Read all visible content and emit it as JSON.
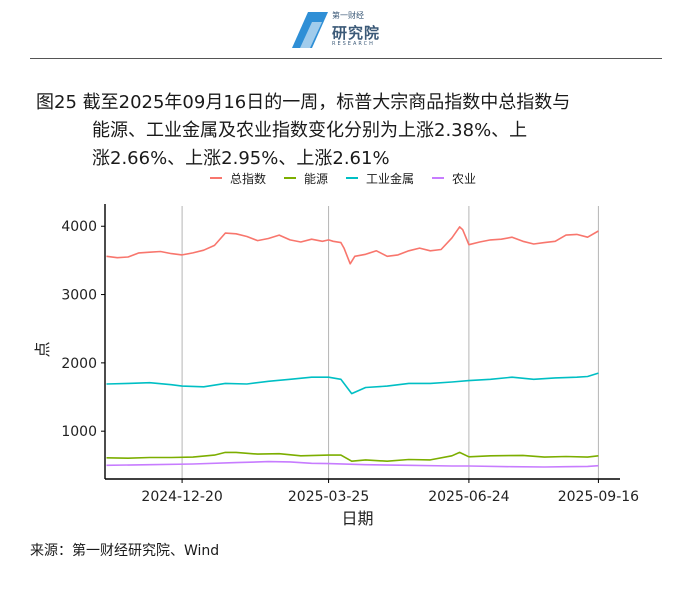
{
  "header": {
    "logo_cn": "第一财经",
    "logo_main": "研究院",
    "logo_en": "RESEARCH"
  },
  "title": {
    "lines": [
      "图25  截至2025年09月16日的一周，标普大宗商品指数中总指数与",
      "能源、工业金属及农业指数变化分别为上涨2.38%、上",
      "涨2.66%、上涨2.95%、上涨2.61%"
    ]
  },
  "source": "来源：第一财经研究院、Wind",
  "colors": {
    "total": "#F8766D",
    "energy": "#7CAE00",
    "metals": "#00BFC4",
    "agri": "#C77CFF"
  },
  "chart_data": {
    "type": "line",
    "xlabel": "日期",
    "ylabel": "点",
    "x_ticks": [
      "2024-12-20",
      "2025-03-25",
      "2025-06-24",
      "2025-09-16"
    ],
    "y_ticks": [
      1000,
      2000,
      3000,
      4000
    ],
    "ylim": [
      300,
      4150
    ],
    "xlim": [
      "2024-10-31",
      "2025-09-30"
    ],
    "grid": "vertical lines at x ticks",
    "legend_position": "top",
    "series": [
      {
        "name": "总指数",
        "color_key": "total",
        "points": [
          [
            "2024-11-01",
            3560
          ],
          [
            "2024-11-08",
            3540
          ],
          [
            "2024-11-15",
            3550
          ],
          [
            "2024-11-22",
            3610
          ],
          [
            "2024-11-29",
            3620
          ],
          [
            "2024-12-06",
            3630
          ],
          [
            "2024-12-13",
            3600
          ],
          [
            "2024-12-20",
            3580
          ],
          [
            "2024-12-27",
            3610
          ],
          [
            "2025-01-03",
            3650
          ],
          [
            "2025-01-10",
            3720
          ],
          [
            "2025-01-17",
            3900
          ],
          [
            "2025-01-24",
            3890
          ],
          [
            "2025-01-31",
            3850
          ],
          [
            "2025-02-07",
            3790
          ],
          [
            "2025-02-14",
            3820
          ],
          [
            "2025-02-21",
            3870
          ],
          [
            "2025-02-28",
            3800
          ],
          [
            "2025-03-07",
            3770
          ],
          [
            "2025-03-14",
            3810
          ],
          [
            "2025-03-21",
            3780
          ],
          [
            "2025-03-25",
            3800
          ],
          [
            "2025-03-28",
            3780
          ],
          [
            "2025-04-02",
            3760
          ],
          [
            "2025-04-04",
            3680
          ],
          [
            "2025-04-08",
            3450
          ],
          [
            "2025-04-11",
            3560
          ],
          [
            "2025-04-18",
            3590
          ],
          [
            "2025-04-25",
            3640
          ],
          [
            "2025-05-02",
            3560
          ],
          [
            "2025-05-09",
            3580
          ],
          [
            "2025-05-16",
            3640
          ],
          [
            "2025-05-23",
            3680
          ],
          [
            "2025-05-30",
            3640
          ],
          [
            "2025-06-06",
            3660
          ],
          [
            "2025-06-13",
            3830
          ],
          [
            "2025-06-18",
            3990
          ],
          [
            "2025-06-20",
            3950
          ],
          [
            "2025-06-24",
            3730
          ],
          [
            "2025-07-01",
            3770
          ],
          [
            "2025-07-08",
            3800
          ],
          [
            "2025-07-15",
            3810
          ],
          [
            "2025-07-22",
            3840
          ],
          [
            "2025-07-29",
            3780
          ],
          [
            "2025-08-05",
            3740
          ],
          [
            "2025-08-12",
            3760
          ],
          [
            "2025-08-19",
            3780
          ],
          [
            "2025-08-26",
            3870
          ],
          [
            "2025-09-02",
            3880
          ],
          [
            "2025-09-09",
            3840
          ],
          [
            "2025-09-16",
            3930
          ]
        ]
      },
      {
        "name": "能源",
        "color_key": "energy",
        "points": [
          [
            "2024-11-01",
            610
          ],
          [
            "2024-11-15",
            605
          ],
          [
            "2024-11-29",
            615
          ],
          [
            "2024-12-13",
            615
          ],
          [
            "2024-12-27",
            620
          ],
          [
            "2025-01-10",
            650
          ],
          [
            "2025-01-17",
            690
          ],
          [
            "2025-01-24",
            690
          ],
          [
            "2025-02-07",
            665
          ],
          [
            "2025-02-21",
            670
          ],
          [
            "2025-03-07",
            640
          ],
          [
            "2025-03-25",
            650
          ],
          [
            "2025-04-02",
            650
          ],
          [
            "2025-04-09",
            560
          ],
          [
            "2025-04-18",
            580
          ],
          [
            "2025-05-02",
            560
          ],
          [
            "2025-05-16",
            585
          ],
          [
            "2025-05-30",
            580
          ],
          [
            "2025-06-13",
            640
          ],
          [
            "2025-06-18",
            690
          ],
          [
            "2025-06-24",
            625
          ],
          [
            "2025-07-08",
            640
          ],
          [
            "2025-07-29",
            645
          ],
          [
            "2025-08-12",
            620
          ],
          [
            "2025-08-26",
            630
          ],
          [
            "2025-09-09",
            620
          ],
          [
            "2025-09-16",
            640
          ]
        ]
      },
      {
        "name": "工业金属",
        "color_key": "metals",
        "points": [
          [
            "2024-11-01",
            1690
          ],
          [
            "2024-11-15",
            1700
          ],
          [
            "2024-11-29",
            1710
          ],
          [
            "2024-12-13",
            1680
          ],
          [
            "2024-12-20",
            1660
          ],
          [
            "2025-01-03",
            1650
          ],
          [
            "2025-01-17",
            1700
          ],
          [
            "2025-01-31",
            1690
          ],
          [
            "2025-02-14",
            1730
          ],
          [
            "2025-02-28",
            1760
          ],
          [
            "2025-03-14",
            1790
          ],
          [
            "2025-03-25",
            1790
          ],
          [
            "2025-04-02",
            1760
          ],
          [
            "2025-04-09",
            1550
          ],
          [
            "2025-04-18",
            1640
          ],
          [
            "2025-05-02",
            1660
          ],
          [
            "2025-05-16",
            1700
          ],
          [
            "2025-05-30",
            1700
          ],
          [
            "2025-06-13",
            1720
          ],
          [
            "2025-06-24",
            1740
          ],
          [
            "2025-07-08",
            1760
          ],
          [
            "2025-07-22",
            1790
          ],
          [
            "2025-08-05",
            1760
          ],
          [
            "2025-08-19",
            1780
          ],
          [
            "2025-09-02",
            1790
          ],
          [
            "2025-09-09",
            1800
          ],
          [
            "2025-09-16",
            1850
          ]
        ]
      },
      {
        "name": "农业",
        "color_key": "agri",
        "points": [
          [
            "2024-11-01",
            500
          ],
          [
            "2024-11-29",
            510
          ],
          [
            "2024-12-27",
            520
          ],
          [
            "2025-01-24",
            540
          ],
          [
            "2025-02-14",
            555
          ],
          [
            "2025-02-28",
            550
          ],
          [
            "2025-03-14",
            530
          ],
          [
            "2025-03-25",
            525
          ],
          [
            "2025-04-18",
            510
          ],
          [
            "2025-05-16",
            500
          ],
          [
            "2025-06-13",
            490
          ],
          [
            "2025-06-24",
            490
          ],
          [
            "2025-07-22",
            480
          ],
          [
            "2025-08-12",
            475
          ],
          [
            "2025-08-26",
            480
          ],
          [
            "2025-09-09",
            485
          ],
          [
            "2025-09-16",
            495
          ]
        ]
      }
    ]
  }
}
